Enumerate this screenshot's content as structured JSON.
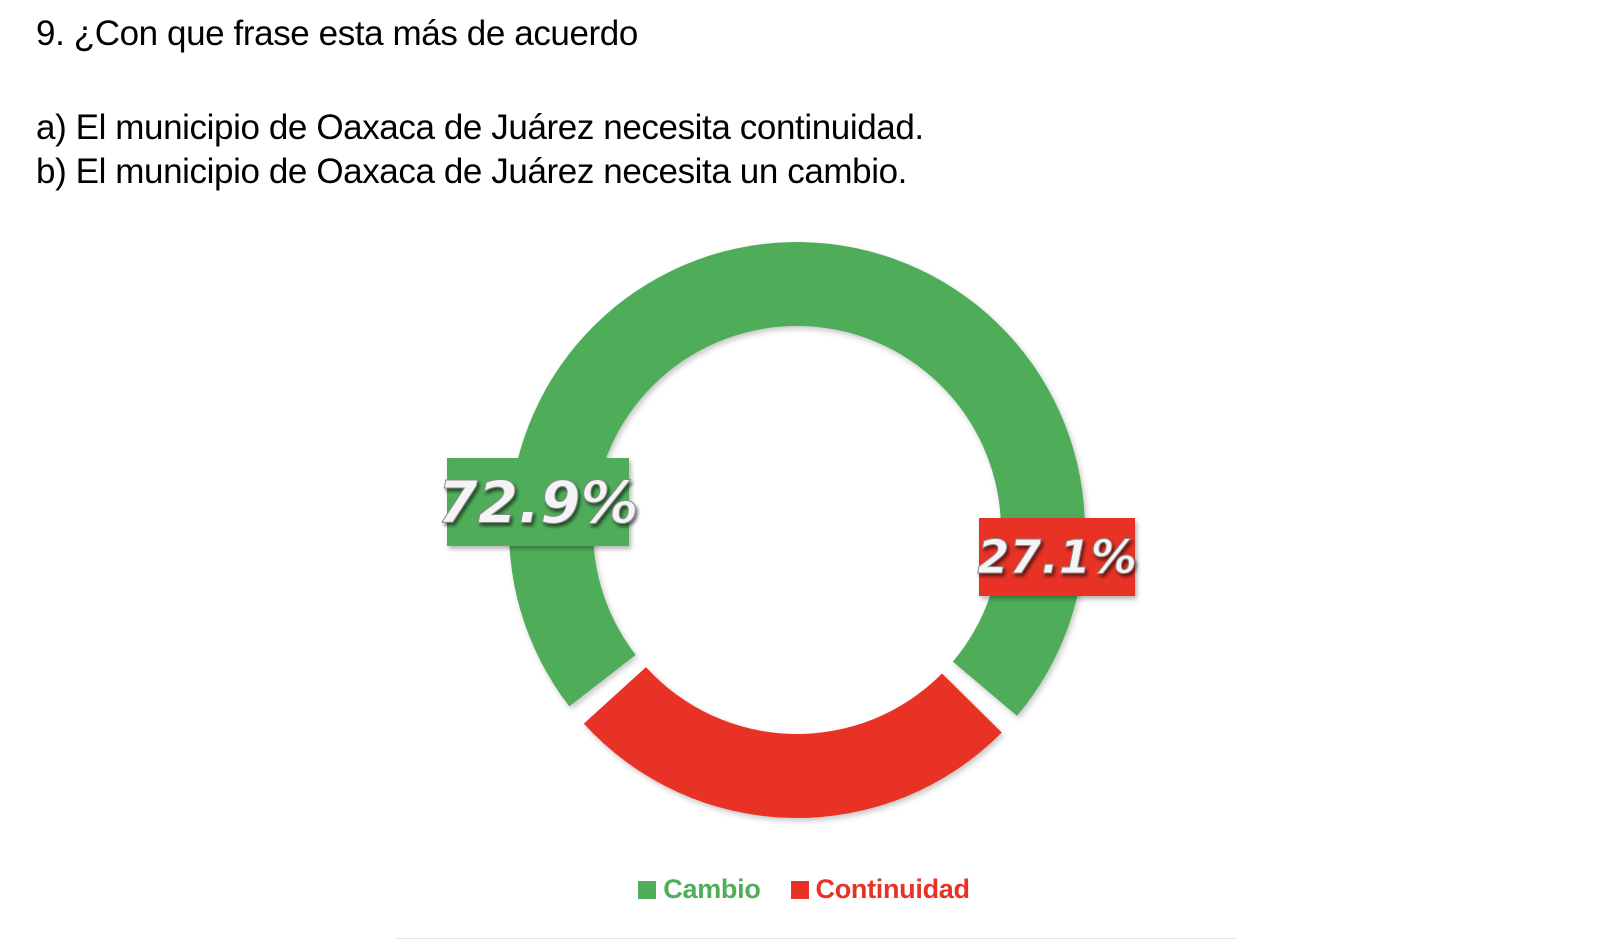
{
  "question": "9. ¿Con que frase esta más de acuerdo",
  "options": [
    "a) El municipio de Oaxaca de Juárez necesita continuidad.",
    "b) El municipio de Oaxaca de Juárez necesita un cambio."
  ],
  "chart_data": {
    "type": "pie",
    "style": "donut",
    "labels": [
      "Cambio",
      "Continuidad"
    ],
    "values": [
      72.9,
      27.1
    ],
    "data_labels": [
      "72.9%",
      "27.1%"
    ],
    "colors": [
      "#50ad5a",
      "#e83225"
    ],
    "legend_position": "bottom"
  }
}
